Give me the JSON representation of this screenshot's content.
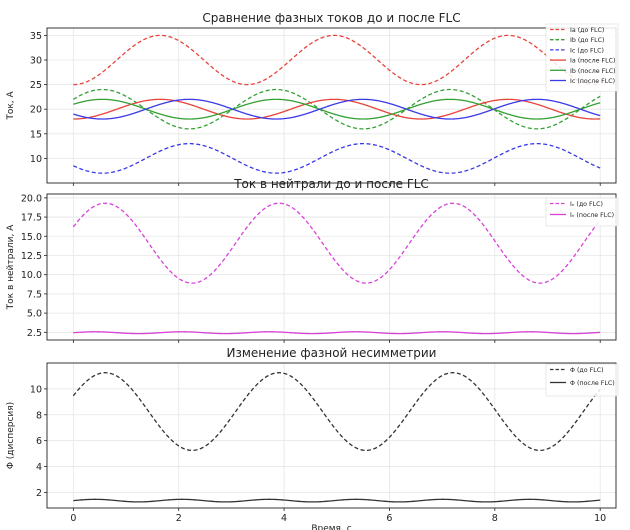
{
  "figure": {
    "xlabel": "Время, с"
  },
  "chart_data": [
    {
      "type": "line",
      "title": "Сравнение фазных токов до и после FLC",
      "xlabel": "",
      "ylabel": "Ток, А",
      "xlim": [
        -0.5,
        10.3
      ],
      "ylim": [
        5,
        36.5
      ],
      "x_ticks": [
        0,
        2,
        4,
        6,
        8,
        10
      ],
      "y_ticks": [
        10,
        15,
        20,
        25,
        30,
        35
      ],
      "grid": true,
      "legend": "top-right",
      "series": [
        {
          "name": "Ia (до FLC)",
          "color": "#e8433a",
          "dashed": true,
          "mean": 30,
          "amp": 5,
          "period": 3.3,
          "phase_deg": -90,
          "x": [
            0,
            0.75,
            2.4,
            4.05,
            5.7,
            7.35,
            9.0,
            10
          ],
          "values": [
            30,
            35,
            25,
            35,
            25,
            35,
            25,
            32.5
          ]
        },
        {
          "name": "Ib (до FLC)",
          "color": "#34a034",
          "dashed": true,
          "mean": 20,
          "amp": 4,
          "period": 3.3,
          "phase_deg": 30,
          "x": [
            0,
            1.5,
            3.15,
            4.8,
            6.45,
            8.1,
            9.75
          ],
          "values": [
            23.5,
            16,
            24,
            16,
            24,
            16,
            24
          ]
        },
        {
          "name": "Ic (до FLC)",
          "color": "#3a3ae8",
          "dashed": true,
          "mean": 10,
          "amp": 3,
          "period": 3.3,
          "phase_deg": 210,
          "x": [
            0,
            0.6,
            2.25,
            3.9,
            5.55,
            7.2,
            8.85,
            10
          ],
          "values": [
            7.5,
            7,
            13,
            7,
            13,
            7,
            13,
            7.5
          ]
        },
        {
          "name": "Ia (после FLC)",
          "color": "#e8433a",
          "dashed": false,
          "mean": 20,
          "amp": 2,
          "period": 3.3,
          "phase_deg": -90,
          "x": [
            0,
            0.8,
            2.4,
            4.05,
            5.7,
            7.35,
            9.0,
            10
          ],
          "values": [
            20,
            22,
            18,
            22,
            18,
            22,
            18,
            20.5
          ]
        },
        {
          "name": "Ib (после FLC)",
          "color": "#34a034",
          "dashed": false,
          "mean": 20,
          "amp": 2,
          "period": 3.3,
          "phase_deg": 30,
          "x": [
            0,
            1.5,
            3.15,
            4.8,
            6.45,
            8.1,
            9.75
          ],
          "values": [
            21.8,
            18,
            22,
            18,
            22,
            18,
            22
          ]
        },
        {
          "name": "Ic (после FLC)",
          "color": "#3a3ae8",
          "dashed": false,
          "mean": 20,
          "amp": 2,
          "period": 3.3,
          "phase_deg": 210,
          "x": [
            0,
            0.55,
            2.25,
            3.9,
            5.55,
            7.2,
            8.85,
            10
          ],
          "values": [
            18.5,
            18,
            22,
            18,
            22,
            18,
            22,
            18.5
          ]
        }
      ]
    },
    {
      "type": "line",
      "title": "Ток в нейтрали до и после FLC",
      "xlabel": "",
      "ylabel": "Ток в нейтрали, А",
      "xlim": [
        -0.5,
        10.3
      ],
      "ylim": [
        1.5,
        20.5
      ],
      "x_ticks": [
        0,
        2,
        4,
        6,
        8,
        10
      ],
      "y_ticks": [
        2.5,
        5.0,
        7.5,
        10.0,
        12.5,
        15.0,
        17.5,
        20.0
      ],
      "grid": true,
      "legend": "top-right",
      "series": [
        {
          "name": "Iₙ (до FLC)",
          "color": "#d842d8",
          "dashed": true,
          "mean": 14.1,
          "amp": 5.2,
          "period": 3.3,
          "phase_deg": 24,
          "x": [
            0,
            0.65,
            2.3,
            3.95,
            5.6,
            7.25,
            8.9,
            10
          ],
          "values": [
            16.2,
            19.3,
            9.0,
            19.3,
            9.0,
            19.3,
            9.0,
            16.4
          ]
        },
        {
          "name": "Iₙ (после FLC)",
          "color": "#d842d8",
          "dashed": false,
          "mean": 2.45,
          "amp": 0.12,
          "period": 1.65,
          "phase_deg": 0,
          "x": [
            0,
            10
          ],
          "values": [
            2.45,
            2.45
          ]
        }
      ]
    },
    {
      "type": "line",
      "title": "Изменение фазной  несимметрии",
      "xlabel": "Время, с",
      "ylabel": "Φ (дисперсия)",
      "xlim": [
        -0.5,
        10.3
      ],
      "ylim": [
        0.8,
        12
      ],
      "x_ticks": [
        0,
        2,
        4,
        6,
        8,
        10
      ],
      "y_ticks": [
        2,
        4,
        6,
        8,
        10
      ],
      "grid": true,
      "legend": "top-right",
      "series": [
        {
          "name": "Φ (до FLC)",
          "color": "#333333",
          "dashed": true,
          "mean": 8.25,
          "amp": 3.0,
          "period": 3.3,
          "phase_deg": 24,
          "x": [
            0,
            0.65,
            2.3,
            3.95,
            5.6,
            7.25,
            8.9,
            10
          ],
          "values": [
            9.4,
            11.2,
            5.2,
            11.2,
            5.2,
            11.2,
            5.2,
            9.5
          ]
        },
        {
          "name": "Φ (после FLC)",
          "color": "#333333",
          "dashed": false,
          "mean": 1.37,
          "amp": 0.1,
          "period": 1.65,
          "phase_deg": 0,
          "x": [
            0,
            10
          ],
          "values": [
            1.37,
            1.37
          ]
        }
      ]
    }
  ]
}
